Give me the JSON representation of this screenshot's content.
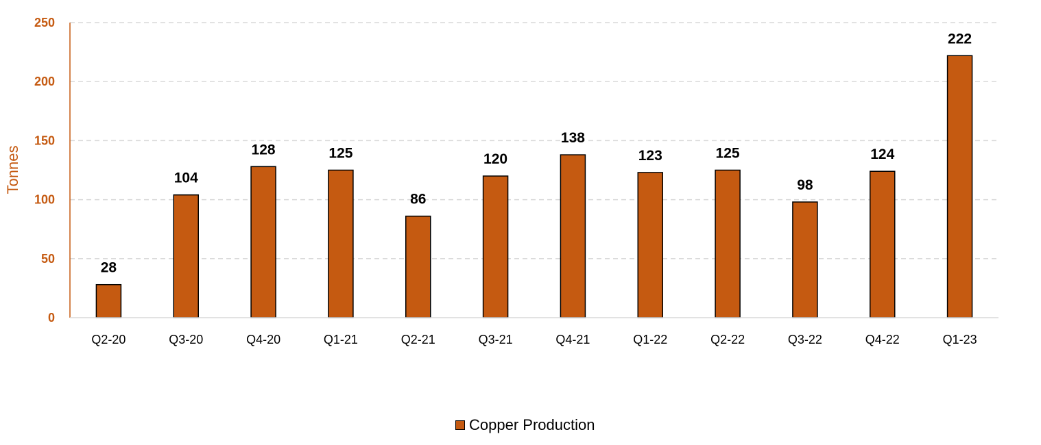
{
  "chart_data": {
    "type": "bar",
    "title": "",
    "xlabel": "",
    "ylabel": "Tonnes",
    "categories": [
      "Q2-20",
      "Q3-20",
      "Q4-20",
      "Q1-21",
      "Q2-21",
      "Q3-21",
      "Q4-21",
      "Q1-22",
      "Q2-22",
      "Q3-22",
      "Q4-22",
      "Q1-23"
    ],
    "series": [
      {
        "name": "Copper Production",
        "values": [
          28,
          104,
          128,
          125,
          86,
          120,
          138,
          123,
          125,
          98,
          124,
          222
        ]
      }
    ],
    "ylim": [
      0,
      250
    ],
    "yticks": [
      "0",
      "50",
      "100",
      "150",
      "200",
      "250"
    ],
    "grid": true,
    "legend_position": "bottom-center",
    "data_labels": true
  },
  "colors": {
    "bar": "#c55a11",
    "bar_stroke": "#000000",
    "axis": "#c55a11",
    "grid": "#d9d9d9",
    "tick_text": "#000000",
    "ytick_text": "#c55a11"
  }
}
